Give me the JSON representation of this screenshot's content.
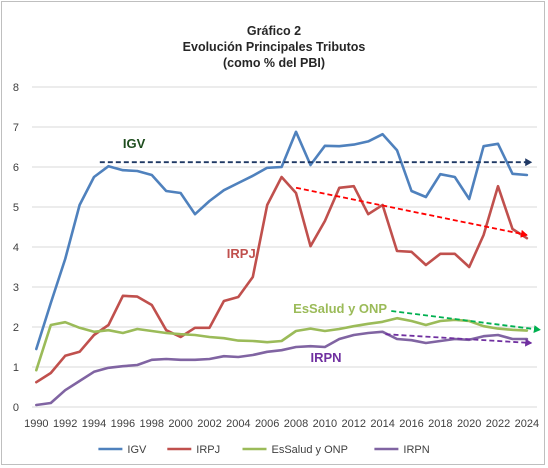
{
  "chart_data": {
    "type": "line",
    "title": [
      "Gráfico 2",
      "Evolución Principales Tributos",
      "(como % del PBI)"
    ],
    "xlabel": "",
    "ylabel": "",
    "ylim": [
      0,
      8
    ],
    "yticks": [
      "0",
      "1",
      "2",
      "3",
      "4",
      "5",
      "6",
      "7",
      "8"
    ],
    "xticks": [
      "1990",
      "1992",
      "1994",
      "1996",
      "1998",
      "2000",
      "2002",
      "2004",
      "2006",
      "2008",
      "2010",
      "2012",
      "2014",
      "2016",
      "2018",
      "2020",
      "2022",
      "2024"
    ],
    "x": [
      1990,
      1991,
      1992,
      1993,
      1994,
      1995,
      1996,
      1997,
      1998,
      1999,
      2000,
      2001,
      2002,
      2003,
      2004,
      2005,
      2006,
      2007,
      2008,
      2009,
      2010,
      2011,
      2012,
      2013,
      2014,
      2015,
      2016,
      2017,
      2018,
      2019,
      2020,
      2021,
      2022,
      2023,
      2024
    ],
    "grid": true,
    "legend_position": "bottom",
    "series": [
      {
        "name": "IGV",
        "color": "#4f81bd",
        "values": [
          1.45,
          2.6,
          3.7,
          5.05,
          5.75,
          6.02,
          5.92,
          5.9,
          5.8,
          5.4,
          5.35,
          4.82,
          5.15,
          5.42,
          5.6,
          5.78,
          5.98,
          6.0,
          6.88,
          6.05,
          6.53,
          6.52,
          6.56,
          6.64,
          6.82,
          6.42,
          5.4,
          5.25,
          5.82,
          5.75,
          5.2,
          6.52,
          6.58,
          5.83,
          5.8
        ]
      },
      {
        "name": "IRPJ",
        "color": "#c0504d",
        "values": [
          0.62,
          0.85,
          1.28,
          1.38,
          1.8,
          2.05,
          2.78,
          2.76,
          2.55,
          1.92,
          1.75,
          1.98,
          1.98,
          2.65,
          2.75,
          3.25,
          5.05,
          5.75,
          5.35,
          4.02,
          4.65,
          5.48,
          5.52,
          4.82,
          5.05,
          3.9,
          3.88,
          3.55,
          3.83,
          3.83,
          3.5,
          4.3,
          5.52,
          4.45,
          4.22
        ]
      },
      {
        "name": "EsSalud y ONP",
        "color": "#9bbb59",
        "values": [
          0.92,
          2.05,
          2.12,
          1.98,
          1.88,
          1.92,
          1.85,
          1.95,
          1.9,
          1.85,
          1.82,
          1.8,
          1.75,
          1.72,
          1.66,
          1.65,
          1.62,
          1.65,
          1.9,
          1.96,
          1.9,
          1.95,
          2.02,
          2.08,
          2.13,
          2.22,
          2.15,
          2.05,
          2.15,
          2.18,
          2.15,
          2.02,
          1.96,
          1.93,
          1.91
        ]
      },
      {
        "name": "IRPN",
        "color": "#8064a2",
        "values": [
          0.05,
          0.1,
          0.42,
          0.65,
          0.88,
          0.98,
          1.02,
          1.05,
          1.18,
          1.2,
          1.18,
          1.18,
          1.2,
          1.27,
          1.25,
          1.3,
          1.38,
          1.42,
          1.5,
          1.52,
          1.5,
          1.7,
          1.8,
          1.85,
          1.88,
          1.7,
          1.67,
          1.6,
          1.65,
          1.7,
          1.68,
          1.77,
          1.8,
          1.7,
          1.7
        ]
      }
    ],
    "annotations": [
      {
        "label": "IGV",
        "color": "#1e4d1e",
        "x": 1996.0,
        "y": 6.48
      },
      {
        "label": "IRPJ",
        "color": "#c0504d",
        "x": 2003.2,
        "y": 3.72
      },
      {
        "label": "EsSalud y ONP",
        "color": "#9bbb59",
        "x": 2007.8,
        "y": 2.35
      },
      {
        "label": "IRPN",
        "color": "#7030a0",
        "x": 2009.0,
        "y": 1.12
      }
    ],
    "trend_arrows": [
      {
        "series": "IGV",
        "color": "#1f3864",
        "x1": 1994.4,
        "y1": 6.12,
        "x2": 2024.3,
        "y2": 6.12
      },
      {
        "series": "IRPJ",
        "color": "#ff0000",
        "x1": 2008.0,
        "y1": 5.48,
        "x2": 2024.0,
        "y2": 4.3
      },
      {
        "series": "EsSalud y ONP",
        "color": "#00b050",
        "x1": 2014.6,
        "y1": 2.4,
        "x2": 2024.9,
        "y2": 1.93
      },
      {
        "series": "IRPN",
        "color": "#7030a0",
        "x1": 2014.2,
        "y1": 1.82,
        "x2": 2024.3,
        "y2": 1.6
      }
    ]
  }
}
